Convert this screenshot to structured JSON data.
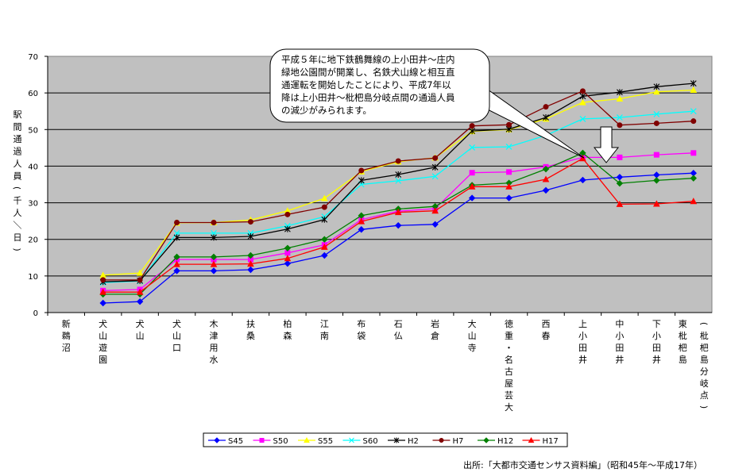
{
  "chart_data": {
    "type": "line",
    "ylabel": "駅間通過人員（千人／日）",
    "ylim": [
      0,
      70
    ],
    "yticks": [
      0,
      10,
      20,
      30,
      40,
      50,
      60,
      70
    ],
    "grid": true,
    "legend_position": "bottom",
    "categories": [
      "新鵜沼",
      "犬山遊園",
      "犬山",
      "犬山口",
      "木津用水",
      "扶桑",
      "柏森",
      "江南",
      "布袋",
      "石仏",
      "岩倉",
      "大山寺",
      "徳重・名古屋芸大",
      "西春",
      "上小田井",
      "中小田井",
      "下小田井",
      "東枇杷島（枇杷島分岐点）"
    ],
    "series": [
      {
        "name": "S45",
        "color": "#0000ff",
        "marker": "diamond",
        "values": [
          null,
          2.6,
          3.0,
          11.4,
          11.4,
          11.7,
          13.4,
          15.6,
          22.7,
          23.8,
          24.1,
          31.3,
          31.3,
          33.4,
          36.2,
          37.0,
          37.6,
          38.1
        ]
      },
      {
        "name": "S50",
        "color": "#ff00ff",
        "marker": "square",
        "values": [
          null,
          6.0,
          6.3,
          14.5,
          14.5,
          14.5,
          16.3,
          18.5,
          25.4,
          27.7,
          28.4,
          38.2,
          38.4,
          39.8,
          42.4,
          42.4,
          43.1,
          43.6
        ]
      },
      {
        "name": "S55",
        "color": "#ffff00",
        "marker": "triangle",
        "values": [
          null,
          10.2,
          10.8,
          24.5,
          24.6,
          25.3,
          27.8,
          31.2,
          38.5,
          41.2,
          42.3,
          49.5,
          50.0,
          52.9,
          57.4,
          58.4,
          60.3,
          60.8
        ]
      },
      {
        "name": "S60",
        "color": "#00ffff",
        "marker": "x",
        "values": [
          null,
          8.2,
          8.6,
          21.7,
          21.7,
          21.7,
          23.7,
          26.2,
          35.0,
          36.0,
          37.2,
          45.1,
          45.3,
          48.4,
          52.9,
          53.3,
          54.2,
          55.0
        ]
      },
      {
        "name": "H2",
        "color": "#000000",
        "marker": "star",
        "values": [
          null,
          8.4,
          8.7,
          20.5,
          20.5,
          20.8,
          22.8,
          25.4,
          36.1,
          37.7,
          39.7,
          49.6,
          50.1,
          53.3,
          59.1,
          60.2,
          61.7,
          62.6
        ]
      },
      {
        "name": "H7",
        "color": "#800000",
        "marker": "circle",
        "values": [
          null,
          8.9,
          8.9,
          24.6,
          24.6,
          24.8,
          26.8,
          28.8,
          38.8,
          41.4,
          42.2,
          51.0,
          51.3,
          56.2,
          60.5,
          51.2,
          51.7,
          52.3
        ]
      },
      {
        "name": "H12",
        "color": "#008000",
        "marker": "diamond",
        "values": [
          null,
          5.0,
          5.0,
          15.2,
          15.2,
          15.6,
          17.6,
          20.0,
          26.5,
          28.3,
          29.0,
          34.8,
          35.4,
          39.2,
          43.6,
          35.3,
          36.1,
          36.7
        ]
      },
      {
        "name": "H17",
        "color": "#ff0000",
        "marker": "triangle",
        "values": [
          null,
          5.6,
          5.6,
          13.2,
          13.2,
          13.3,
          14.8,
          17.9,
          24.9,
          27.4,
          27.8,
          34.4,
          34.4,
          36.4,
          42.1,
          29.6,
          29.7,
          30.4
        ]
      }
    ]
  },
  "annotation": {
    "text": "平成５年に地下鉄鶴舞線の上小田井～庄内緑地公園間が開業し、名鉄犬山線と相互直通運転を開始したことにより、平成7年以降は上小田井～枇杷島分岐点間の通過人員の減少がみられます。",
    "lines": [
      "平成５年に地下鉄鶴舞線の上小田井～庄内",
      "緑地公園間が開業し、名鉄犬山線と相互直",
      "通運転を開始したことにより、平成7年以",
      "降は上小田井～枇杷島分岐点間の通過人員",
      "の減少がみられます。"
    ]
  },
  "source": "出所:「大都市交通センサス資料編」（昭和45年～平成17年）"
}
